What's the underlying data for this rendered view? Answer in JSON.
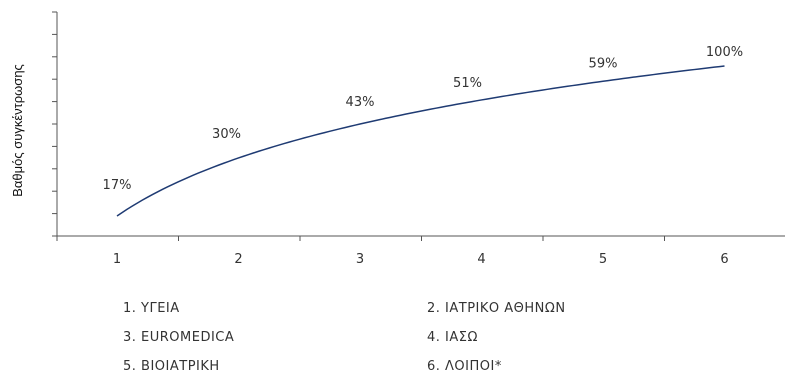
{
  "chart_data": {
    "type": "line",
    "title": "",
    "xlabel": "",
    "ylabel": "Βαθμός συγκέντρωσης",
    "x": [
      1,
      2,
      3,
      4,
      5,
      6
    ],
    "series": [
      {
        "values": [
          17,
          30,
          43,
          51,
          59,
          100
        ],
        "labels": [
          "17%",
          "30%",
          "43%",
          "51%",
          "59%",
          "100%"
        ]
      }
    ],
    "xticks": [
      "1",
      "2",
      "3",
      "4",
      "5",
      "6"
    ],
    "grid": false,
    "legend_position": "bottom",
    "line_color": "#1f3b73"
  },
  "legend": {
    "items": [
      "1. ΥΓΕΙΑ",
      "2. ΙΑΤΡΙΚΟ ΑΘΗΝΩΝ",
      "3. EUROMEDICA",
      "4. ΙΑΣΩ",
      "5. ΒΙΟΙΑΤΡΙΚΗ",
      "6. ΛΟΙΠΟΙ*"
    ]
  }
}
